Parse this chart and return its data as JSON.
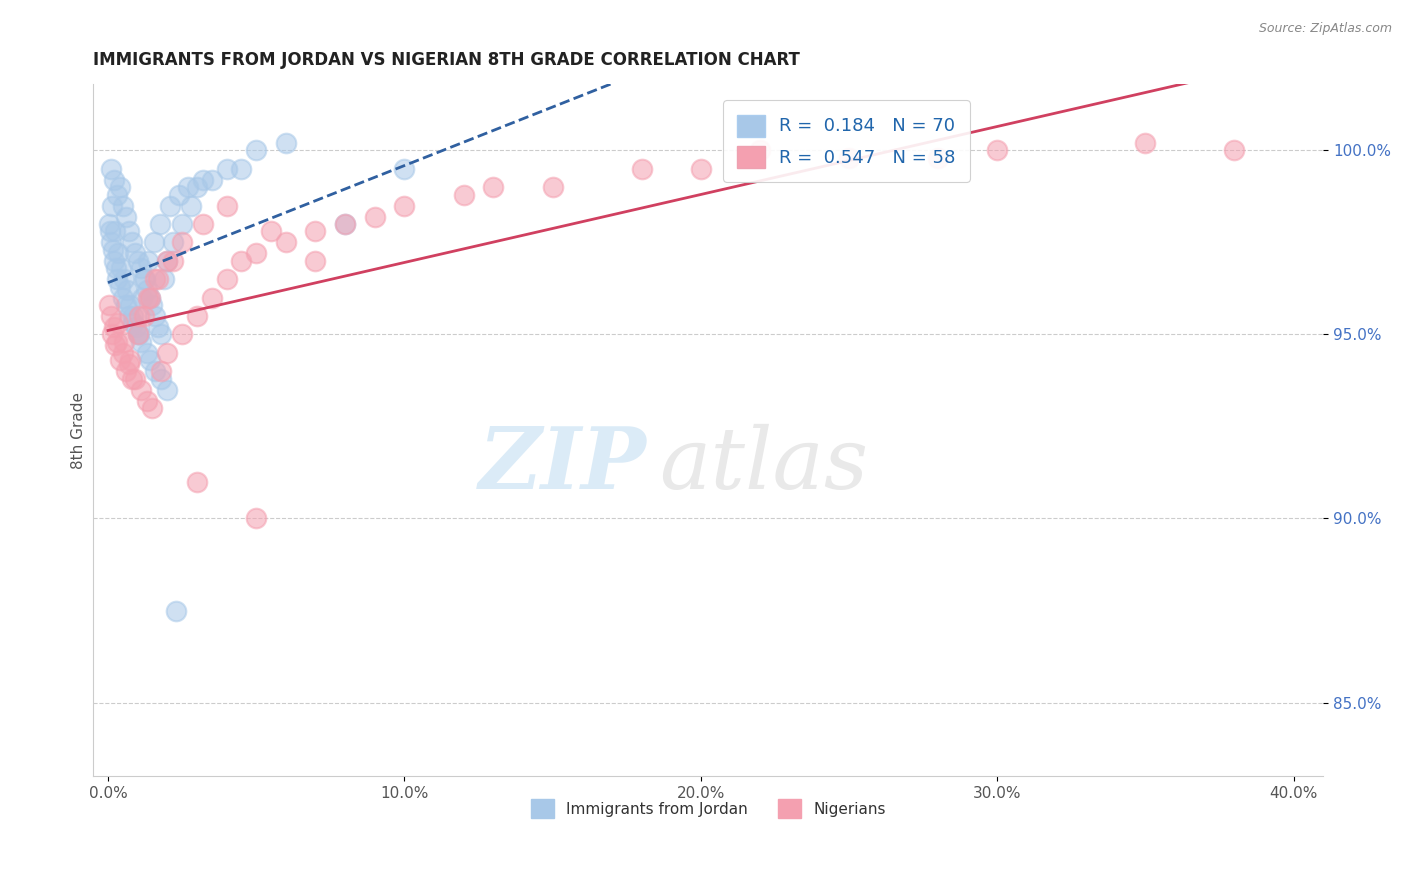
{
  "title": "IMMIGRANTS FROM JORDAN VS NIGERIAN 8TH GRADE CORRELATION CHART",
  "source": "Source: ZipAtlas.com",
  "ylabel": "8th Grade",
  "ylim": [
    83.0,
    101.8
  ],
  "xlim": [
    -0.5,
    41.0
  ],
  "yticks": [
    85.0,
    90.0,
    95.0,
    100.0
  ],
  "xticks": [
    0.0,
    10.0,
    20.0,
    30.0,
    40.0
  ],
  "blue_R": 0.184,
  "blue_N": 70,
  "pink_R": 0.547,
  "pink_N": 58,
  "blue_color": "#a8c8e8",
  "pink_color": "#f4a0b0",
  "blue_line_color": "#3060a0",
  "pink_line_color": "#d04060",
  "legend_label_blue": "Immigrants from Jordan",
  "legend_label_pink": "Nigerians",
  "watermark_zip": "ZIP",
  "watermark_atlas": "atlas",
  "blue_x": [
    0.1,
    0.2,
    0.3,
    0.4,
    0.5,
    0.6,
    0.7,
    0.8,
    0.9,
    1.0,
    1.1,
    1.2,
    1.3,
    1.4,
    1.5,
    1.6,
    1.7,
    1.8,
    1.9,
    2.0,
    2.2,
    2.5,
    2.8,
    3.0,
    3.5,
    4.0,
    5.0,
    6.0,
    8.0,
    10.0,
    0.15,
    0.25,
    0.35,
    0.45,
    0.55,
    0.65,
    0.75,
    0.85,
    0.95,
    1.05,
    1.15,
    1.25,
    1.35,
    1.55,
    1.75,
    2.1,
    2.4,
    2.7,
    3.2,
    4.5,
    0.05,
    0.1,
    0.2,
    0.3,
    0.5,
    0.7,
    1.0,
    1.3,
    1.6,
    2.0,
    0.08,
    0.18,
    0.28,
    0.4,
    0.6,
    0.85,
    1.1,
    1.4,
    1.8,
    2.3
  ],
  "blue_y": [
    99.5,
    99.2,
    98.8,
    99.0,
    98.5,
    98.2,
    97.8,
    97.5,
    97.2,
    97.0,
    96.8,
    96.5,
    96.2,
    96.0,
    95.8,
    95.5,
    95.2,
    95.0,
    96.5,
    97.0,
    97.5,
    98.0,
    98.5,
    99.0,
    99.2,
    99.5,
    100.0,
    100.2,
    98.0,
    99.5,
    98.5,
    97.8,
    97.2,
    96.8,
    96.5,
    96.2,
    95.8,
    95.5,
    95.2,
    95.0,
    96.0,
    96.5,
    97.0,
    97.5,
    98.0,
    98.5,
    98.8,
    99.0,
    99.2,
    99.5,
    98.0,
    97.5,
    97.0,
    96.5,
    96.0,
    95.5,
    95.0,
    94.5,
    94.0,
    93.5,
    97.8,
    97.3,
    96.8,
    96.3,
    95.8,
    95.3,
    94.8,
    94.3,
    93.8,
    87.5
  ],
  "pink_x": [
    0.1,
    0.2,
    0.3,
    0.5,
    0.7,
    0.9,
    1.1,
    1.3,
    1.5,
    1.8,
    2.0,
    2.5,
    3.0,
    3.5,
    4.0,
    4.5,
    5.0,
    6.0,
    7.0,
    8.0,
    10.0,
    12.0,
    15.0,
    20.0,
    25.0,
    30.0,
    35.0,
    38.0,
    0.15,
    0.25,
    0.4,
    0.6,
    0.8,
    1.0,
    1.2,
    1.4,
    1.6,
    2.0,
    2.5,
    3.2,
    4.0,
    5.5,
    7.0,
    9.0,
    13.0,
    18.0,
    22.0,
    28.0,
    0.05,
    0.35,
    0.55,
    0.75,
    1.05,
    1.35,
    1.7,
    2.2,
    3.0,
    5.0
  ],
  "pink_y": [
    95.5,
    95.2,
    94.8,
    94.5,
    94.2,
    93.8,
    93.5,
    93.2,
    93.0,
    94.0,
    94.5,
    95.0,
    95.5,
    96.0,
    96.5,
    97.0,
    97.2,
    97.5,
    97.8,
    98.0,
    98.5,
    98.8,
    99.0,
    99.5,
    99.8,
    100.0,
    100.2,
    100.0,
    95.0,
    94.7,
    94.3,
    94.0,
    93.8,
    95.0,
    95.5,
    96.0,
    96.5,
    97.0,
    97.5,
    98.0,
    98.5,
    97.8,
    97.0,
    98.2,
    99.0,
    99.5,
    100.0,
    99.8,
    95.8,
    95.3,
    94.8,
    94.3,
    95.5,
    96.0,
    96.5,
    97.0,
    91.0,
    90.0
  ]
}
